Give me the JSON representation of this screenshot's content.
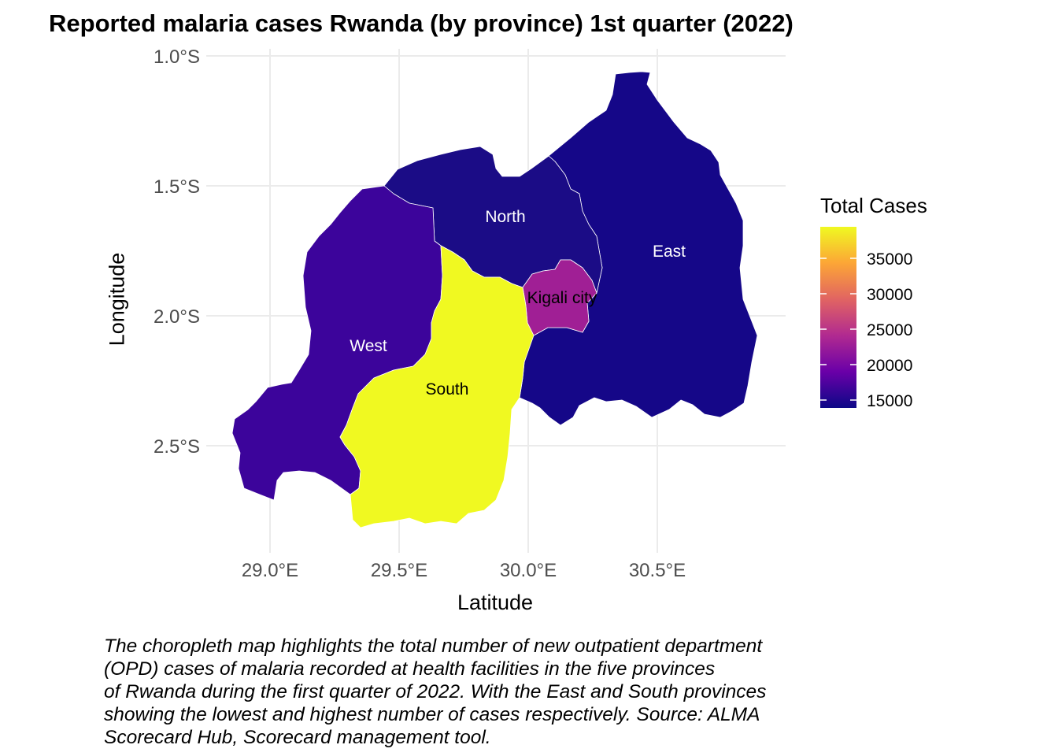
{
  "title": "Reported malaria cases Rwanda (by province) 1st quarter (2022)",
  "xlabel": "Latitude",
  "ylabel": "Longitude",
  "x_ticks": [
    "29.0°E",
    "29.5°E",
    "30.0°E",
    "30.5°E"
  ],
  "y_ticks": [
    "1.0°S",
    "1.5°S",
    "2.0°S",
    "2.5°S"
  ],
  "legend": {
    "title": "Total Cases",
    "ticks": [
      "35000",
      "30000",
      "25000",
      "20000",
      "15000"
    ],
    "colors": [
      "#f0f921",
      "#fca636",
      "#e16462",
      "#b12a90",
      "#6a00a8",
      "#0d0887"
    ]
  },
  "regions": [
    {
      "name": "North",
      "color": "#1b0c86",
      "label_color": "#ffffff"
    },
    {
      "name": "East",
      "color": "#150788",
      "label_color": "#ffffff"
    },
    {
      "name": "West",
      "color": "#3c049b",
      "label_color": "#ffffff"
    },
    {
      "name": "South",
      "color": "#f0f921",
      "label_color": "#000000"
    },
    {
      "name": "Kigali city",
      "color": "#a01f95",
      "label_color": "#000000"
    }
  ],
  "caption": [
    "The choropleth map highlights the total number of new outpatient department",
    "(OPD) cases of malaria recorded at health facilities in the five provinces",
    "of Rwanda during the first quarter of 2022. With the East and South provinces",
    "showing the lowest and highest number of cases respectively. Source: ALMA",
    "Scorecard Hub, Scorecard management tool."
  ]
}
